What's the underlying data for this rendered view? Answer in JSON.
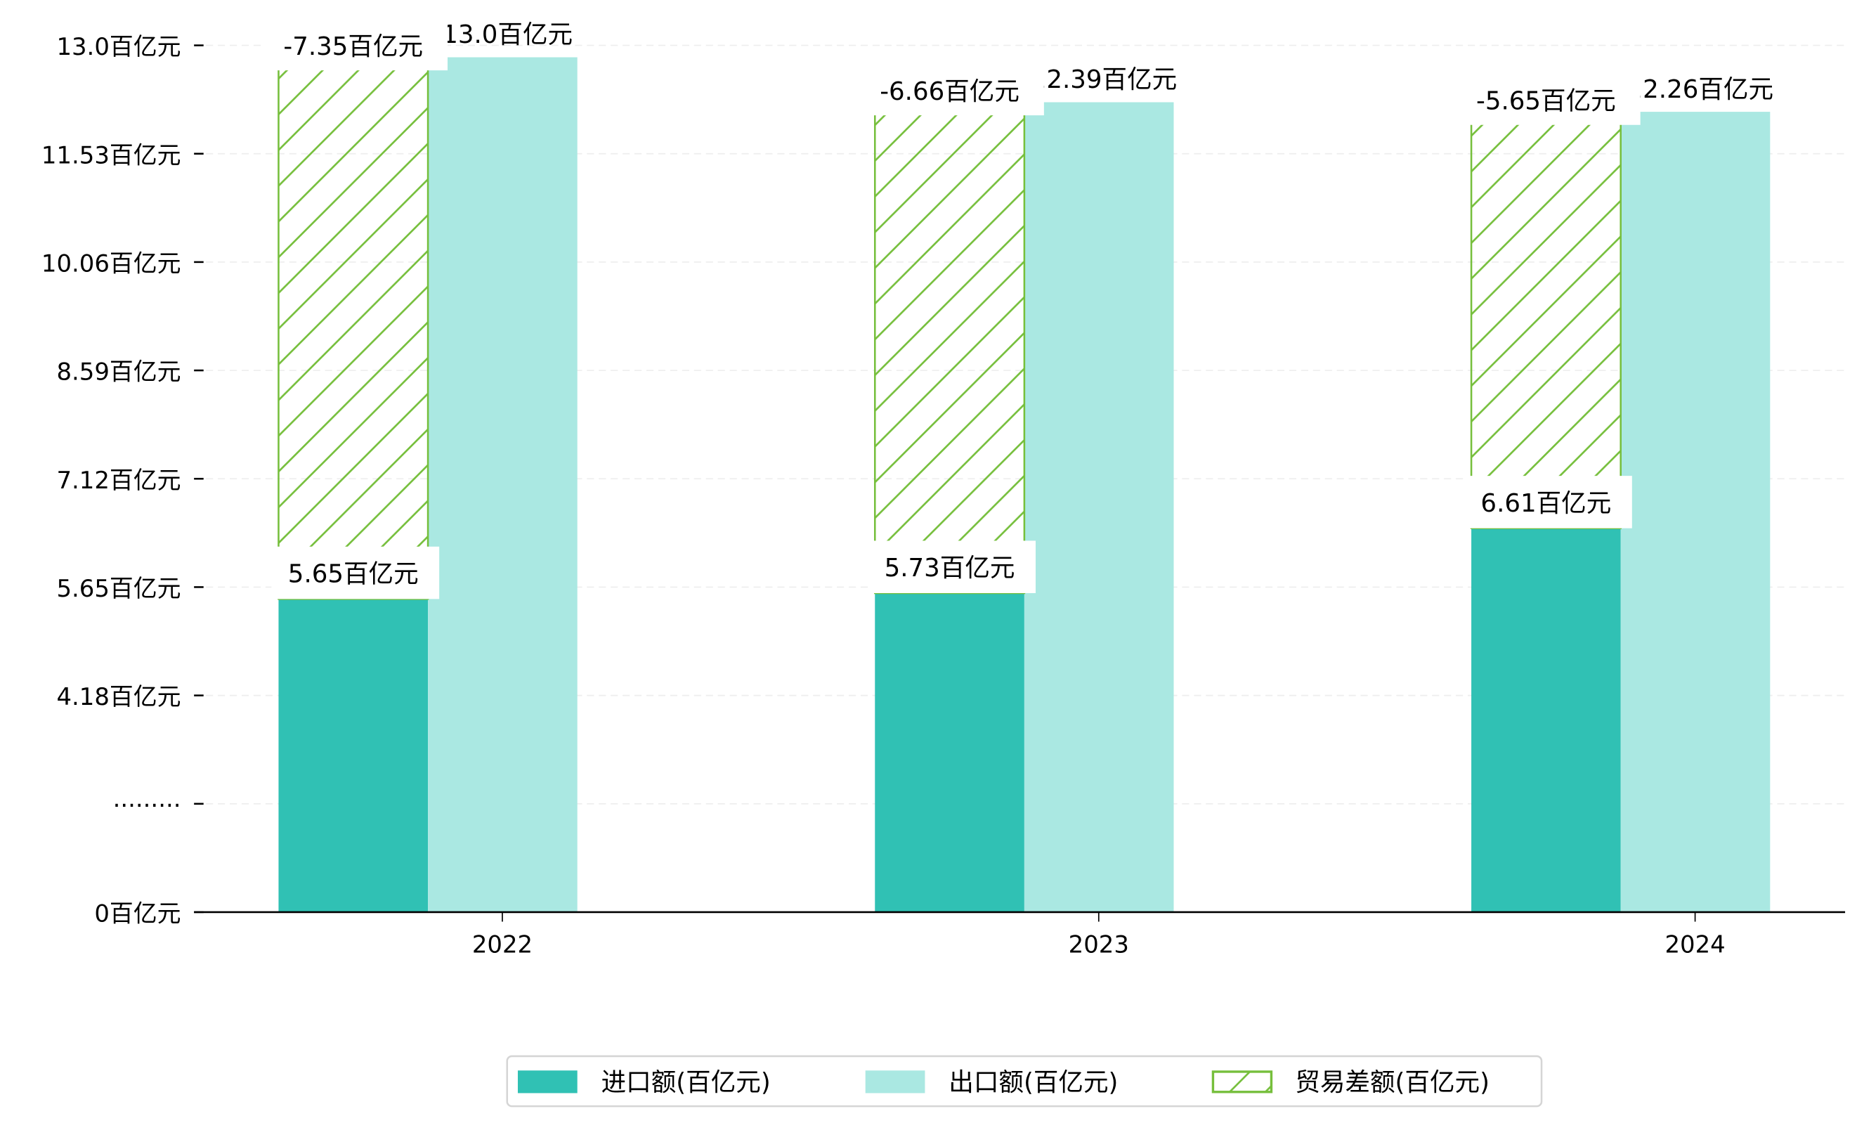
{
  "chart_data": {
    "type": "bar",
    "categories": [
      "2022",
      "2023",
      "2024"
    ],
    "series": [
      {
        "name": "进口额(百亿元)",
        "values": [
          5.65,
          5.73,
          6.61
        ],
        "labels": [
          "5.65百亿元",
          "5.73百亿元",
          "6.61百亿元"
        ],
        "color": "#30c1b4"
      },
      {
        "name": "出口额(百亿元)",
        "values": [
          13.0,
          12.39,
          12.26
        ],
        "labels": [
          "13.0百亿元",
          "12.39百亿元",
          "12.26百亿元"
        ],
        "color": "#aae8e2"
      },
      {
        "name": "贸易差额(百亿元)",
        "values": [
          -7.35,
          -6.66,
          -5.65
        ],
        "labels": [
          "-7.35百亿元",
          "-6.66百亿元",
          "-5.65百亿元"
        ],
        "color": "#76bf3c",
        "hatch": true
      }
    ],
    "y_ticks": [
      "0百亿元",
      "·········",
      "4.18百亿元",
      "5.65百亿元",
      "7.12百亿元",
      "8.59百亿元",
      "10.06百亿元",
      "11.53百亿元",
      "13.0百亿元"
    ],
    "y_tick_values": [
      0,
      null,
      4.18,
      5.65,
      7.12,
      8.59,
      10.06,
      11.53,
      13.0
    ],
    "ylim": [
      0,
      13.0
    ],
    "axis_break": true,
    "grid": true,
    "legend_position": "bottom-center",
    "title": "",
    "xlabel": "",
    "ylabel": ""
  }
}
